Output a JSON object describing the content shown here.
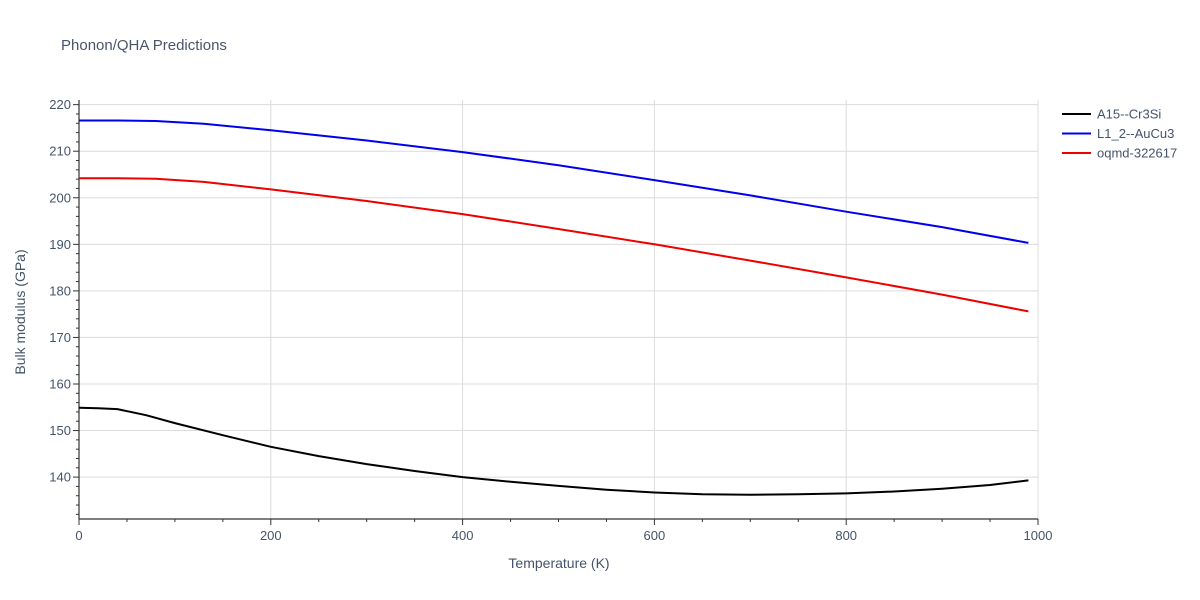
{
  "chart_data": {
    "type": "line",
    "title": "Phonon/QHA Predictions",
    "xlabel": "Temperature (K)",
    "ylabel": "Bulk modulus (GPa)",
    "xlim": [
      0,
      1000
    ],
    "ylim": [
      131,
      221
    ],
    "xticks": [
      0,
      200,
      400,
      600,
      800,
      1000
    ],
    "yticks": [
      140,
      150,
      160,
      170,
      180,
      190,
      200,
      210,
      220
    ],
    "grid": true,
    "legend_position": "top-right",
    "series": [
      {
        "name": "A15--Cr3Si",
        "color": "#000000",
        "x": [
          0,
          20,
          40,
          70,
          100,
          150,
          200,
          250,
          300,
          350,
          400,
          450,
          500,
          550,
          600,
          650,
          700,
          750,
          800,
          850,
          900,
          950,
          990
        ],
        "y": [
          154.9,
          154.8,
          154.6,
          153.3,
          151.6,
          149.0,
          146.5,
          144.5,
          142.8,
          141.3,
          140.0,
          139.0,
          138.1,
          137.3,
          136.7,
          136.3,
          136.2,
          136.3,
          136.5,
          136.9,
          137.5,
          138.3,
          139.3
        ]
      },
      {
        "name": "L1_2--AuCu3",
        "color": "#0000ee",
        "x": [
          0,
          40,
          80,
          130,
          200,
          300,
          400,
          500,
          600,
          700,
          800,
          900,
          990
        ],
        "y": [
          216.6,
          216.6,
          216.5,
          215.9,
          214.5,
          212.3,
          209.8,
          207.0,
          203.8,
          200.5,
          197.0,
          193.7,
          190.3
        ]
      },
      {
        "name": "oqmd-322617",
        "color": "#ee0000",
        "x": [
          0,
          40,
          80,
          130,
          200,
          300,
          400,
          500,
          600,
          700,
          800,
          900,
          990
        ],
        "y": [
          204.2,
          204.2,
          204.1,
          203.4,
          201.8,
          199.3,
          196.5,
          193.3,
          190.0,
          186.5,
          182.9,
          179.2,
          175.6
        ]
      }
    ]
  }
}
